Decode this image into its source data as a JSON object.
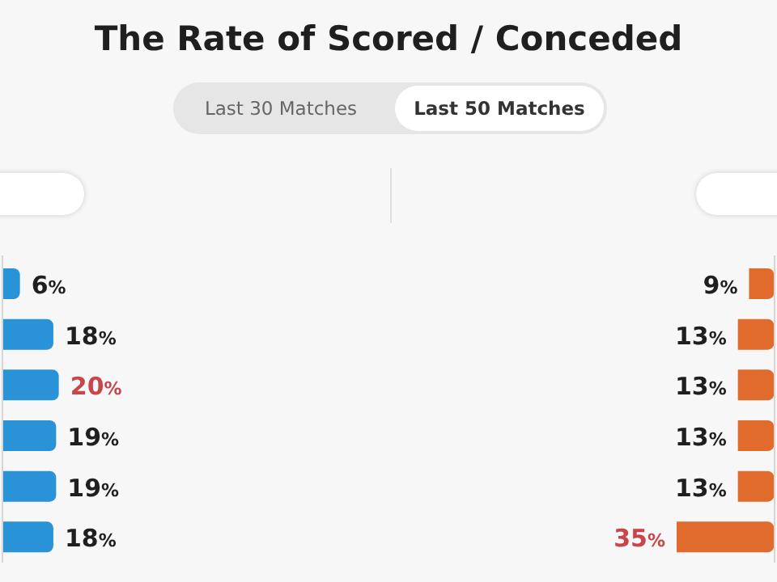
{
  "chart_data": [
    {
      "type": "other",
      "title": "The Rate of Scored / Conceded",
      "annotations": [
        "Last 30 Matches",
        "Last 50 Matches"
      ]
    },
    {
      "type": "bar",
      "orientation": "horizontal",
      "categories": [
        null,
        null,
        null,
        null,
        null,
        null
      ],
      "values": [
        6,
        18,
        20,
        19,
        19,
        18
      ],
      "color": "#2a93d8",
      "value_labels": [
        "6%",
        "18%",
        "20%",
        "19%",
        "19%",
        "18%"
      ]
    },
    {
      "type": "bar",
      "orientation": "horizontal",
      "categories": [
        null,
        null,
        null,
        null,
        null,
        null
      ],
      "values": [
        9,
        13,
        13,
        13,
        13,
        35
      ],
      "color": "#e06b2c",
      "value_labels": [
        "9%",
        "13%",
        "13%",
        "13%",
        "13%",
        "35%"
      ]
    }
  ]
}
